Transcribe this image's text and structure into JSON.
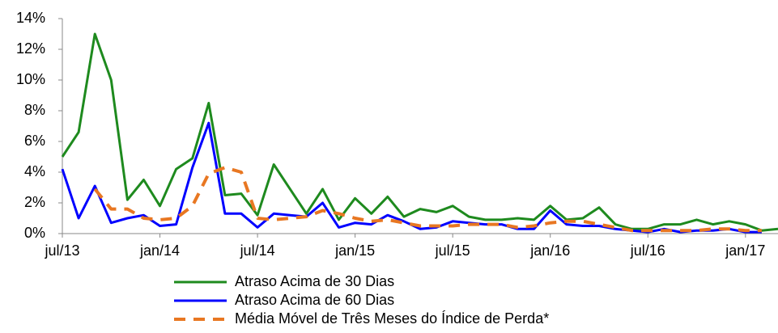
{
  "chart_data": {
    "type": "line",
    "categories": [
      "jul/13",
      null,
      null,
      null,
      null,
      null,
      "jan/14",
      null,
      null,
      null,
      null,
      null,
      "jul/14",
      null,
      null,
      null,
      null,
      null,
      "jan/15",
      null,
      null,
      null,
      null,
      null,
      "jul/15",
      null,
      null,
      null,
      null,
      null,
      "jan/16",
      null,
      null,
      null,
      null,
      null,
      "jul/16",
      null,
      null,
      null,
      null,
      null,
      "jan/17",
      null,
      null
    ],
    "series": [
      {
        "name": "Atraso Acima de 30 Dias",
        "color": "#1e8a1e",
        "dashed": false,
        "values": [
          5.0,
          6.6,
          13.0,
          10.0,
          2.2,
          3.5,
          1.8,
          4.2,
          4.9,
          8.5,
          2.5,
          2.6,
          1.2,
          4.5,
          2.9,
          1.3,
          2.9,
          0.9,
          2.3,
          1.3,
          2.4,
          1.1,
          1.6,
          1.4,
          1.8,
          1.1,
          0.9,
          0.9,
          1.0,
          0.9,
          1.8,
          0.9,
          1.0,
          1.7,
          0.6,
          0.3,
          0.3,
          0.6,
          0.6,
          0.9,
          0.6,
          0.8,
          0.6,
          0.2,
          0.3
        ]
      },
      {
        "name": "Atraso Acima de 60 Dias",
        "color": "#0000ff",
        "dashed": false,
        "values": [
          4.2,
          1.0,
          3.1,
          0.7,
          1.0,
          1.2,
          0.5,
          0.6,
          4.3,
          7.2,
          1.3,
          1.3,
          0.4,
          1.3,
          1.2,
          1.1,
          2.0,
          0.4,
          0.7,
          0.6,
          1.2,
          0.8,
          0.3,
          0.4,
          0.8,
          0.7,
          0.6,
          0.6,
          0.3,
          0.3,
          1.5,
          0.6,
          0.5,
          0.5,
          0.3,
          0.2,
          0.1,
          0.3,
          0.1,
          0.2,
          0.2,
          0.3,
          0.1,
          0.1,
          null
        ]
      },
      {
        "name": "Média Móvel de Três Meses do Índice de Perda*",
        "color": "#e87722",
        "dashed": true,
        "values": [
          null,
          null,
          2.9,
          1.6,
          1.6,
          1.0,
          0.9,
          1.0,
          1.8,
          3.9,
          4.3,
          4.0,
          1.0,
          0.9,
          1.0,
          1.1,
          1.5,
          1.3,
          1.0,
          0.8,
          0.9,
          0.7,
          0.5,
          0.5,
          0.5,
          0.6,
          0.6,
          0.6,
          0.4,
          0.5,
          0.7,
          0.8,
          0.8,
          0.6,
          0.4,
          0.2,
          0.2,
          0.2,
          0.2,
          0.2,
          0.3,
          0.3,
          0.2,
          0.2,
          null
        ]
      }
    ],
    "ylim": [
      0,
      14
    ],
    "yticks": [
      {
        "value": 0,
        "label": "0%"
      },
      {
        "value": 2,
        "label": "2%"
      },
      {
        "value": 4,
        "label": "4%"
      },
      {
        "value": 6,
        "label": "6%"
      },
      {
        "value": 8,
        "label": "8%"
      },
      {
        "value": 10,
        "label": "10%"
      },
      {
        "value": 12,
        "label": "12%"
      },
      {
        "value": 14,
        "label": "14%"
      }
    ],
    "grid": false,
    "legend": "bottom"
  }
}
